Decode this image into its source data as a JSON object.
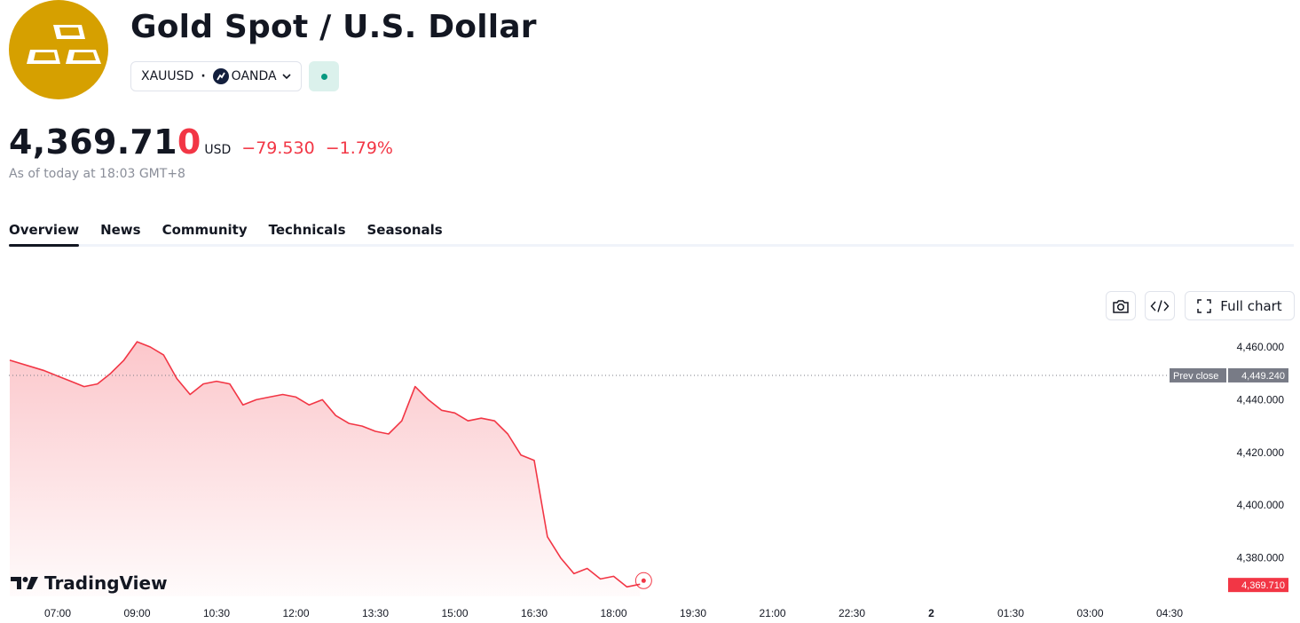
{
  "header": {
    "title": "Gold Spot / U.S. Dollar",
    "ticker": "XAUUSD",
    "separator": "·",
    "broker": "OANDA",
    "logo_icon": "gold-bars-icon",
    "broker_icon": "oanda-logo-icon",
    "market_status": "open",
    "colors": {
      "logo_bg": "#d6a000",
      "status": "#089981"
    }
  },
  "quote": {
    "price_main": "4,369.71",
    "price_last_digit": "0",
    "currency": "USD",
    "change": "−79.530",
    "change_percent": "−1.79%",
    "as_of": "As of today at 18:03 GMT+8",
    "colors": {
      "down": "#f23645"
    }
  },
  "tabs": [
    {
      "label": "Overview",
      "active": true
    },
    {
      "label": "News",
      "active": false
    },
    {
      "label": "Community",
      "active": false
    },
    {
      "label": "Technicals",
      "active": false
    },
    {
      "label": "Seasonals",
      "active": false
    }
  ],
  "toolbar": {
    "camera_icon": "camera-icon",
    "embed_icon": "code-icon",
    "full_chart_label": "Full chart",
    "full_chart_icon": "fullscreen-icon"
  },
  "watermark": "TradingView",
  "chart_data": {
    "type": "area",
    "x_tick_labels": [
      "07:00",
      "09:00",
      "10:30",
      "12:00",
      "13:30",
      "15:00",
      "16:30",
      "18:00",
      "19:30",
      "21:00",
      "22:30",
      "2",
      "01:30",
      "03:00",
      "04:30"
    ],
    "y_tick_labels": [
      "4,460.000",
      "4,440.000",
      "4,420.000",
      "4,400.000",
      "4,380.000"
    ],
    "ylim": [
      4364,
      4472
    ],
    "prev_close": {
      "label": "Prev close",
      "value": 4449.24,
      "text": "4,449.240"
    },
    "last_price": {
      "value": 4369.71,
      "text": "4,369.710"
    },
    "line_color": "#f23645",
    "x": [
      "06:30",
      "06:45",
      "07:00",
      "07:15",
      "07:30",
      "07:45",
      "08:00",
      "08:15",
      "08:30",
      "08:45",
      "09:00",
      "09:15",
      "09:30",
      "09:45",
      "10:00",
      "10:15",
      "10:30",
      "10:45",
      "11:00",
      "11:15",
      "11:30",
      "11:45",
      "12:00",
      "12:15",
      "12:30",
      "12:45",
      "13:00",
      "13:15",
      "13:30",
      "13:45",
      "14:00",
      "14:15",
      "14:30",
      "14:45",
      "15:00",
      "15:15",
      "15:30",
      "15:45",
      "16:00",
      "16:15",
      "16:30",
      "16:45",
      "17:00",
      "17:15",
      "17:30",
      "17:45",
      "18:00"
    ],
    "values": [
      4455,
      4451,
      4449,
      4447,
      4445,
      4446,
      4450,
      4455,
      4462,
      4460,
      4457,
      4448,
      4442,
      4446,
      4447,
      4446,
      4438,
      4440,
      4441,
      4442,
      4441,
      4438,
      4440,
      4434,
      4431,
      4430,
      4428,
      4427,
      4432,
      4445,
      4440,
      4436,
      4435,
      4432,
      4433,
      4432,
      4427,
      4419,
      4417,
      4388,
      4380,
      4374,
      4376,
      4372,
      4373,
      4369,
      4370
    ]
  }
}
